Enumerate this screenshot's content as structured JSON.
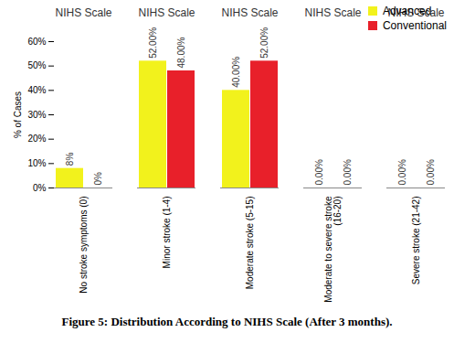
{
  "chart_data": {
    "type": "bar",
    "title": "NIHS Scale",
    "caption": "Figure 5: Distribution According to NIHS Scale (After 3 months).",
    "y_label": "% of Cases",
    "categories": [
      "No stroke symptoms (0)",
      "Minor stroke (1-4)",
      "Moderate stroke (5-15)",
      "Moderate to severe stroke (16-20)",
      "Severe stroke (21-42)"
    ],
    "series": [
      {
        "name": "Advanced",
        "color": "#f2f21c",
        "values": [
          8,
          52,
          40,
          0,
          0
        ],
        "value_labels": [
          "8%",
          "52.00%",
          "40.00%",
          "0.00%",
          "0.00%"
        ]
      },
      {
        "name": "Conventional",
        "color": "#e8202a",
        "values": [
          0,
          48,
          52,
          0,
          0
        ],
        "value_labels": [
          "0%",
          "48.00%",
          "52.00%",
          "0.00%",
          "0.00%"
        ]
      }
    ],
    "ylim": [
      0,
      60
    ],
    "yticks": [
      {
        "value": 0,
        "label": "0%"
      },
      {
        "value": 10,
        "label": "10%"
      },
      {
        "value": 20,
        "label": "20%"
      },
      {
        "value": 30,
        "label": "30%"
      },
      {
        "value": 40,
        "label": "40%"
      },
      {
        "value": 50,
        "label": "50%"
      },
      {
        "value": 60,
        "label": "60%"
      }
    ],
    "grid": false,
    "legend": "top-right",
    "data_labels": true
  }
}
